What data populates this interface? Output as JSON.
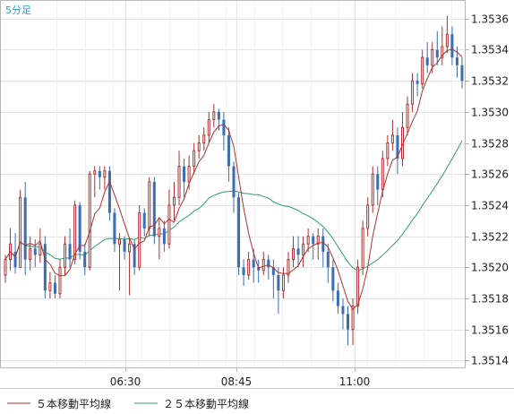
{
  "chart_data": {
    "type": "candlestick",
    "timeframe_label": "5分足",
    "x_tick_labels": [
      "06:30",
      "08:45",
      "11:00"
    ],
    "y_ticks": [
      1.3514,
      1.3516,
      1.3518,
      1.352,
      1.3522,
      1.3524,
      1.3526,
      1.3528,
      1.353,
      1.3532,
      1.3534,
      1.3536
    ],
    "y_tick_labels": [
      "1.3514",
      "1.3516",
      "1.3518",
      "1.3520",
      "1.3522",
      "1.3524",
      "1.3526",
      "1.3528",
      "1.3530",
      "1.3532",
      "1.3534",
      "1.3536"
    ],
    "ylim": [
      1.35135,
      1.35372
    ],
    "grid": true,
    "legend_position": "bottom-left",
    "colors": {
      "up": "#b03030",
      "down": "#3a6db5",
      "ma5": "#b03030",
      "ma25": "#2e9e6e",
      "grid": "#e4e4e4",
      "axis": "#b8b8b8"
    },
    "series": [
      {
        "name": "５本移動平均線",
        "color": "#b03030"
      },
      {
        "name": "２５本移動平均線",
        "color": "#2e9e6e"
      }
    ],
    "candles": [
      [
        1.35195,
        1.35205,
        1.3519,
        1.35208
      ],
      [
        1.35205,
        1.35215,
        1.35198,
        1.35225
      ],
      [
        1.3521,
        1.352,
        1.35196,
        1.35222
      ],
      [
        1.352,
        1.35245,
        1.352,
        1.3525
      ],
      [
        1.35245,
        1.35205,
        1.35195,
        1.35255
      ],
      [
        1.35205,
        1.35212,
        1.35198,
        1.3522
      ],
      [
        1.35212,
        1.35208,
        1.352,
        1.35218
      ],
      [
        1.35208,
        1.35215,
        1.35203,
        1.35225
      ],
      [
        1.35215,
        1.35185,
        1.3518,
        1.3522
      ],
      [
        1.35185,
        1.3519,
        1.3518,
        1.35197
      ],
      [
        1.3519,
        1.35183,
        1.3518,
        1.35195
      ],
      [
        1.35183,
        1.352,
        1.3518,
        1.35205
      ],
      [
        1.352,
        1.35215,
        1.35195,
        1.3522
      ],
      [
        1.35215,
        1.35205,
        1.352,
        1.35225
      ],
      [
        1.35205,
        1.3524,
        1.35202,
        1.35243
      ],
      [
        1.3524,
        1.3521,
        1.35205,
        1.35242
      ],
      [
        1.3521,
        1.352,
        1.35195,
        1.35215
      ],
      [
        1.352,
        1.3526,
        1.35198,
        1.35262
      ],
      [
        1.3526,
        1.35262,
        1.35245,
        1.35265
      ],
      [
        1.35262,
        1.35258,
        1.3525,
        1.35265
      ],
      [
        1.35258,
        1.35262,
        1.3525,
        1.35265
      ],
      [
        1.35262,
        1.35235,
        1.3523,
        1.35265
      ],
      [
        1.35235,
        1.35215,
        1.3521,
        1.35238
      ],
      [
        1.35215,
        1.35218,
        1.35185,
        1.35222
      ],
      [
        1.35218,
        1.3521,
        1.35205,
        1.3522
      ],
      [
        1.3521,
        1.35215,
        1.35182,
        1.35218
      ],
      [
        1.35215,
        1.352,
        1.35195,
        1.35218
      ],
      [
        1.352,
        1.35235,
        1.35198,
        1.3524
      ],
      [
        1.35235,
        1.35225,
        1.3522,
        1.35238
      ],
      [
        1.35225,
        1.35255,
        1.3522,
        1.35258
      ],
      [
        1.35255,
        1.3522,
        1.35215,
        1.35258
      ],
      [
        1.3522,
        1.35225,
        1.35205,
        1.35232
      ],
      [
        1.35225,
        1.35215,
        1.3521,
        1.3523
      ],
      [
        1.35215,
        1.3524,
        1.35212,
        1.3525
      ],
      [
        1.3524,
        1.35245,
        1.3523,
        1.35255
      ],
      [
        1.35245,
        1.35265,
        1.3524,
        1.35275
      ],
      [
        1.35265,
        1.35255,
        1.35245,
        1.3527
      ],
      [
        1.35255,
        1.35265,
        1.3525,
        1.35272
      ],
      [
        1.35265,
        1.35275,
        1.3526,
        1.3528
      ],
      [
        1.35275,
        1.3528,
        1.3527,
        1.35285
      ],
      [
        1.3528,
        1.35285,
        1.35275,
        1.3529
      ],
      [
        1.35285,
        1.35295,
        1.3528,
        1.353
      ],
      [
        1.35295,
        1.353,
        1.3529,
        1.35305
      ],
      [
        1.353,
        1.35295,
        1.35288,
        1.35302
      ],
      [
        1.35295,
        1.35285,
        1.35275,
        1.353
      ],
      [
        1.35285,
        1.35265,
        1.35255,
        1.3529
      ],
      [
        1.35265,
        1.35245,
        1.35235,
        1.35268
      ],
      [
        1.35245,
        1.352,
        1.35195,
        1.35248
      ],
      [
        1.352,
        1.35195,
        1.35188,
        1.35205
      ],
      [
        1.35195,
        1.35205,
        1.35192,
        1.3521
      ],
      [
        1.35205,
        1.352,
        1.3519,
        1.35212
      ],
      [
        1.352,
        1.35198,
        1.3519,
        1.35205
      ],
      [
        1.35198,
        1.35205,
        1.35195,
        1.3521
      ],
      [
        1.35205,
        1.352,
        1.35192,
        1.35208
      ],
      [
        1.352,
        1.35195,
        1.3518,
        1.35205
      ],
      [
        1.35195,
        1.35185,
        1.3517,
        1.352
      ],
      [
        1.35185,
        1.35195,
        1.3518,
        1.352
      ],
      [
        1.35195,
        1.35205,
        1.3519,
        1.3521
      ],
      [
        1.35205,
        1.35212,
        1.352,
        1.3522
      ],
      [
        1.35212,
        1.35208,
        1.352,
        1.3522
      ],
      [
        1.35208,
        1.35215,
        1.352,
        1.3522
      ],
      [
        1.35215,
        1.3522,
        1.3521,
        1.35225
      ],
      [
        1.3522,
        1.35215,
        1.35205,
        1.35222
      ],
      [
        1.35215,
        1.3522,
        1.35205,
        1.35225
      ],
      [
        1.3522,
        1.3521,
        1.352,
        1.35225
      ],
      [
        1.3521,
        1.352,
        1.3519,
        1.35215
      ],
      [
        1.352,
        1.35185,
        1.35178,
        1.35205
      ],
      [
        1.35185,
        1.35175,
        1.3517,
        1.3519
      ],
      [
        1.35175,
        1.3517,
        1.3516,
        1.3518
      ],
      [
        1.3517,
        1.3516,
        1.3515,
        1.35175
      ],
      [
        1.3516,
        1.35175,
        1.3515,
        1.3518
      ],
      [
        1.35175,
        1.352,
        1.3517,
        1.35205
      ],
      [
        1.352,
        1.35225,
        1.35195,
        1.3523
      ],
      [
        1.35225,
        1.3524,
        1.3522,
        1.35245
      ],
      [
        1.3524,
        1.3526,
        1.35235,
        1.35265
      ],
      [
        1.3526,
        1.3525,
        1.3524,
        1.35265
      ],
      [
        1.3525,
        1.3527,
        1.35245,
        1.35275
      ],
      [
        1.3527,
        1.3528,
        1.35265,
        1.35285
      ],
      [
        1.3528,
        1.35285,
        1.35275,
        1.35295
      ],
      [
        1.35285,
        1.3527,
        1.3526,
        1.3529
      ],
      [
        1.3527,
        1.3529,
        1.35265,
        1.353
      ],
      [
        1.3529,
        1.35305,
        1.35285,
        1.3531
      ],
      [
        1.35305,
        1.3532,
        1.353,
        1.35325
      ],
      [
        1.3532,
        1.35318,
        1.3531,
        1.35325
      ],
      [
        1.35318,
        1.35335,
        1.35315,
        1.3534
      ],
      [
        1.35335,
        1.3533,
        1.35325,
        1.35345
      ],
      [
        1.3533,
        1.3534,
        1.35325,
        1.35345
      ],
      [
        1.3534,
        1.35335,
        1.3533,
        1.35352
      ],
      [
        1.35335,
        1.35342,
        1.3533,
        1.35355
      ],
      [
        1.35342,
        1.3535,
        1.35338,
        1.35362
      ],
      [
        1.3535,
        1.35335,
        1.3533,
        1.35355
      ],
      [
        1.35335,
        1.3533,
        1.35322,
        1.35342
      ],
      [
        1.3533,
        1.3532,
        1.35315,
        1.35335
      ]
    ]
  }
}
